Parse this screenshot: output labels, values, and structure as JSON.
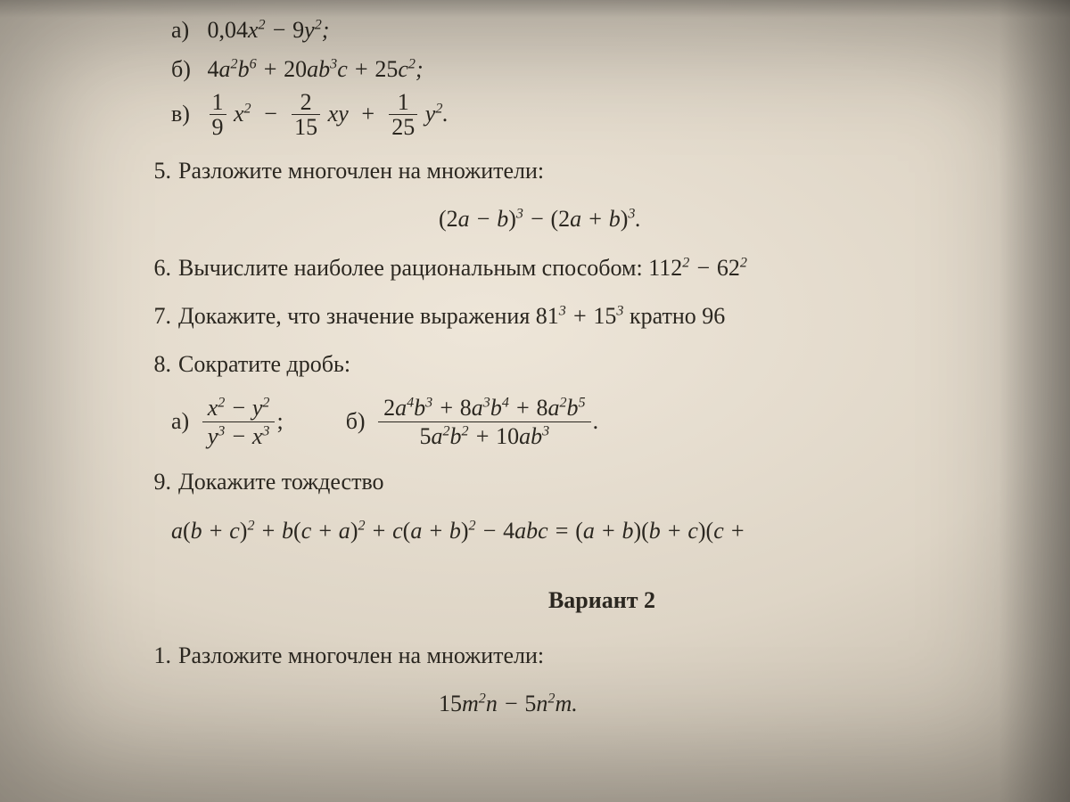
{
  "topsubs": {
    "a": {
      "letter": "а)",
      "expr_html": "<span class='up'>0,04</span>x<sup>2</sup> − <span class='up'>9</span>y<sup>2</sup>;"
    },
    "b": {
      "letter": "б)",
      "expr_html": "<span class='up'>4</span>a<sup>2</sup>b<sup>6</sup> + <span class='up'>20</span>ab<sup>3</sup>c + <span class='up'>25</span>c<sup>2</sup>;"
    },
    "v": {
      "letter": "в)"
    }
  },
  "p5": {
    "num": "5.",
    "text": "Разложите многочлен на множители:",
    "expr_html": "<span class='up'>(2</span>a − b<span class='up'>)</span><sup>3</sup> − <span class='up'>(2</span>a + b<span class='up'>)</span><sup>3</sup>."
  },
  "p6": {
    "num": "6.",
    "text_html": "Вычислите наиболее рациональным способом: <span class='math'><span class='up'>112</span><sup>2</sup> − <span class='up'>62</span><sup>2</sup></span>"
  },
  "p7": {
    "num": "7.",
    "text_html": "Докажите, что значение выражения <span class='math'><span class='up'>81</span><sup>3</sup> + <span class='up'>15</span><sup>3</sup></span> кратно <span class='math'><span class='up'>96</span></span>"
  },
  "p8": {
    "num": "8.",
    "text": "Сократите дробь:",
    "a": {
      "letter": "а)",
      "num_html": "x<sup>2</sup> − y<sup>2</sup>",
      "den_html": "y<sup>3</sup> − x<sup>3</sup>",
      "tail": ";"
    },
    "b": {
      "letter": "б)",
      "num_html": "<span class='up'>2</span>a<sup>4</sup>b<sup>3</sup> + <span class='up'>8</span>a<sup>3</sup>b<sup>4</sup> + <span class='up'>8</span>a<sup>2</sup>b<sup>5</sup>",
      "den_html": "<span class='up'>5</span>a<sup>2</sup>b<sup>2</sup> + <span class='up'>10</span>ab<sup>3</sup>",
      "tail": "."
    }
  },
  "p9": {
    "num": "9.",
    "text": "Докажите тождество",
    "expr_html": "a<span class='up'>(</span>b + c<span class='up'>)</span><sup>2</sup> + b<span class='up'>(</span>c + a<span class='up'>)</span><sup>2</sup> + c<span class='up'>(</span>a + b<span class='up'>)</span><sup>2</sup> − <span class='up'>4</span>abc = <span class='up'>(</span>a + b<span class='up'>)(</span>b + c<span class='up'>)(</span>c + "
  },
  "variant": "Вариант 2",
  "v2p1": {
    "num": "1.",
    "text": "Разложите многочлен на множители:",
    "expr_html": "<span class='up'>15</span>m<sup>2</sup>n − <span class='up'>5</span>n<sup>2</sup>m."
  },
  "frac_v": {
    "t1n": "1",
    "t1d": "9",
    "t2n": "2",
    "t2d": "15",
    "t3n": "1",
    "t3d": "25"
  },
  "colors": {
    "text": "#2b2720",
    "paper_light": "#eee6d9",
    "paper_mid": "#ded5c6",
    "paper_dark": "#b8afa0"
  },
  "fontsize_pt": 20,
  "font_family": "Times New Roman"
}
